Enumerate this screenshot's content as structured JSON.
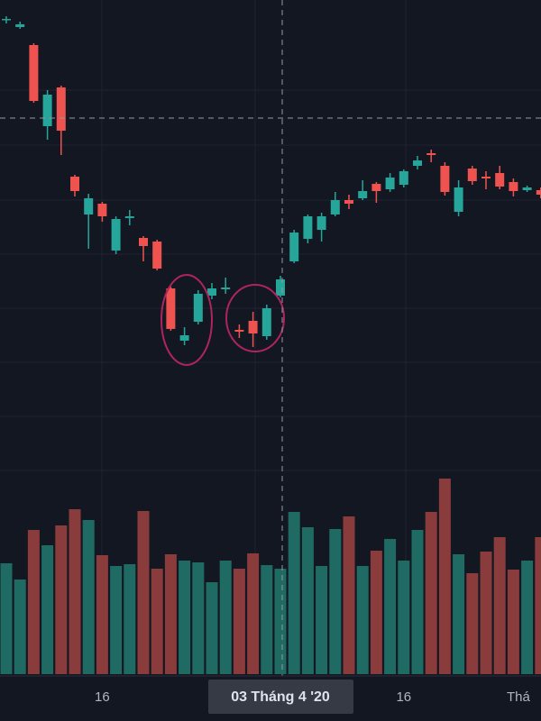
{
  "chart_data": {
    "type": "candlestick",
    "categories": [
      null,
      null,
      null,
      null,
      null,
      null,
      null,
      "16",
      null,
      null,
      null,
      null,
      null,
      null,
      null,
      null,
      null,
      null,
      null,
      null,
      null,
      null,
      null,
      null,
      null,
      null,
      null,
      null,
      null,
      "16",
      null,
      null,
      null,
      null,
      null,
      null,
      null,
      null,
      null,
      "Thá"
    ],
    "crosshair_label": "03 Tháng 4 '20",
    "open": [
      57.8,
      57.0,
      55.0,
      46.0,
      50.3,
      40.4,
      36.2,
      37.4,
      32.2,
      35.8,
      33.6,
      33.2,
      28.0,
      22.2,
      24.3,
      27.2,
      27.9,
      23.4,
      24.4,
      22.7,
      27.2,
      31.0,
      33.5,
      34.5,
      36.2,
      37.8,
      38.0,
      39.6,
      39.0,
      39.5,
      41.6,
      43.0,
      41.6,
      36.5,
      41.3,
      40.4,
      40.8,
      39.8,
      38.9,
      38.9
    ],
    "high": [
      58.2,
      57.6,
      55.2,
      50.0,
      50.5,
      40.6,
      38.5,
      37.6,
      36.0,
      36.7,
      33.8,
      33.4,
      28.2,
      23.7,
      27.8,
      28.6,
      29.2,
      24.0,
      25.4,
      26.2,
      29.4,
      34.5,
      36.2,
      36.4,
      38.7,
      38.4,
      40.0,
      39.8,
      40.8,
      41.2,
      42.7,
      43.4,
      42.0,
      40.0,
      41.6,
      41.0,
      41.6,
      40.2,
      39.4,
      39.2
    ],
    "low": [
      57.4,
      56.8,
      48.6,
      44.5,
      42.8,
      38.2,
      32.4,
      35.4,
      31.8,
      35.0,
      31.0,
      30.0,
      23.3,
      21.7,
      24.0,
      26.8,
      27.4,
      22.5,
      21.5,
      22.3,
      27.0,
      30.8,
      33.0,
      33.2,
      36.0,
      36.8,
      37.8,
      37.5,
      38.7,
      39.2,
      41.2,
      42.0,
      38.3,
      36.0,
      39.5,
      39.0,
      39.0,
      38.2,
      38.7,
      38.0
    ],
    "close": [
      57.9,
      57.3,
      48.8,
      49.5,
      45.5,
      38.8,
      38.0,
      36.0,
      35.7,
      36.0,
      32.7,
      30.2,
      23.5,
      22.8,
      27.4,
      28.0,
      28.1,
      23.2,
      23.0,
      25.8,
      29.0,
      34.2,
      36.0,
      36.0,
      37.8,
      37.4,
      38.8,
      38.8,
      40.3,
      41.0,
      42.2,
      42.8,
      38.7,
      39.2,
      39.9,
      40.2,
      39.3,
      38.8,
      39.2,
      38.4
    ],
    "volume": [
      12.3,
      10.5,
      16.0,
      14.3,
      16.5,
      18.3,
      17.1,
      13.2,
      12.0,
      12.2,
      18.1,
      11.7,
      13.3,
      12.6,
      12.4,
      10.2,
      12.6,
      11.7,
      13.4,
      12.1,
      11.7,
      18.0,
      16.3,
      12.0,
      16.1,
      17.5,
      12.0,
      13.7,
      15.0,
      12.6,
      16.0,
      18.0,
      21.7,
      13.3,
      11.2,
      13.6,
      15.2,
      11.6,
      12.6,
      15.2
    ],
    "ylim": [
      0,
      60
    ],
    "volume_ylim": [
      0,
      25
    ],
    "up_color": "#26a69a",
    "down_color": "#ef5350",
    "volume_up_color": "#1f6b64",
    "volume_down_color": "#8a3b3b"
  }
}
